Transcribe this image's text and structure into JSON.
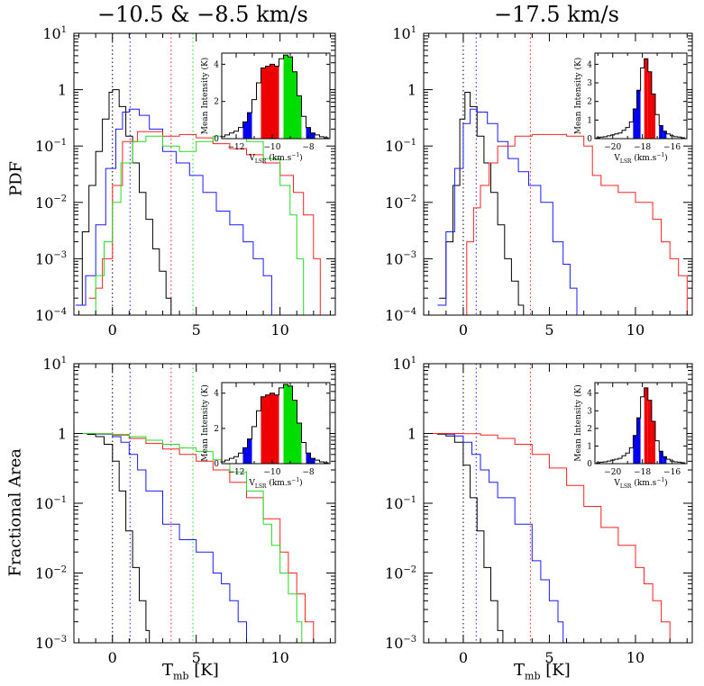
{
  "figure": {
    "column_titles": [
      "−10.5 & −8.5 km/s",
      "−17.5 km/s"
    ],
    "row_ylabels": [
      "PDF",
      "Fractional Area"
    ],
    "xlabel_main": "T",
    "xlabel_sub": "mb",
    "xlabel_unit": " [K]"
  },
  "colors": {
    "black": "#000000",
    "blue": "#1a1aff",
    "red": "#ff2020",
    "green": "#22dd22",
    "inset_blue": "#0000ee",
    "inset_red": "#ee0000",
    "inset_green": "#00dd00"
  },
  "chart_data": [
    {
      "type": "line",
      "step": true,
      "id": "pdf_left",
      "title": "−10.5 & −8.5 km/s",
      "ylabel": "PDF",
      "xlabel": "",
      "xlim": [
        -2.3,
        13.3
      ],
      "ylim": [
        0.0001,
        10
      ],
      "yscale": "log",
      "xticks": [
        0,
        5,
        10
      ],
      "yticklabels": [
        "10^-4",
        "10^-3",
        "10^-2",
        "10^-1",
        "1",
        "10^1"
      ],
      "vlines": [
        {
          "x": 0.0,
          "color": "black"
        },
        {
          "x": 1.05,
          "color": "blue"
        },
        {
          "x": 3.5,
          "color": "red"
        },
        {
          "x": 4.8,
          "color": "green"
        }
      ],
      "series": [
        {
          "color": "black",
          "x": [
            -2.2,
            -1.8,
            -1.4,
            -1.0,
            -0.6,
            -0.2,
            0.0,
            0.4,
            0.8,
            1.2,
            1.6,
            2.0,
            2.4,
            2.8,
            3.2,
            3.5
          ],
          "y": [
            0.00015,
            0.003,
            0.02,
            0.08,
            0.3,
            0.9,
            1.0,
            0.5,
            0.15,
            0.05,
            0.015,
            0.005,
            0.0015,
            0.0006,
            0.0002,
            0.0001
          ]
        },
        {
          "color": "blue",
          "x": [
            -2.2,
            -1.6,
            -1.0,
            -0.4,
            0.2,
            0.6,
            1.0,
            1.6,
            2.2,
            3.0,
            3.8,
            4.6,
            5.4,
            6.2,
            7.0,
            7.8,
            8.4,
            9.0,
            9.5
          ],
          "y": [
            0.00015,
            0.0005,
            0.004,
            0.04,
            0.2,
            0.4,
            0.45,
            0.35,
            0.2,
            0.08,
            0.05,
            0.03,
            0.015,
            0.007,
            0.004,
            0.002,
            0.001,
            0.0005,
            0.0001
          ]
        },
        {
          "color": "red",
          "x": [
            -1.4,
            -1.0,
            -0.6,
            0.0,
            0.6,
            1.5,
            3.0,
            4.0,
            5.0,
            6.0,
            7.0,
            8.0,
            9.0,
            10.0,
            10.8,
            11.4,
            12.0,
            12.4
          ],
          "y": [
            0.0002,
            0.0003,
            0.001,
            0.02,
            0.12,
            0.18,
            0.15,
            0.16,
            0.14,
            0.11,
            0.09,
            0.07,
            0.05,
            0.03,
            0.015,
            0.006,
            0.001,
            0.0002
          ]
        },
        {
          "color": "green",
          "x": [
            -1.7,
            -1.0,
            -0.5,
            0.0,
            0.5,
            1.2,
            2.0,
            3.0,
            4.0,
            5.0,
            6.0,
            7.0,
            8.0,
            9.0,
            10.0,
            10.6,
            11.0,
            11.4
          ],
          "y": [
            0.0001,
            0.0005,
            0.002,
            0.01,
            0.05,
            0.12,
            0.15,
            0.1,
            0.08,
            0.12,
            0.15,
            0.16,
            0.12,
            0.06,
            0.02,
            0.006,
            0.001,
            0.0001
          ]
        }
      ],
      "inset": {
        "type": "bar",
        "xlabel": "V_LSR (km.s^-1)",
        "ylabel": "Mean Intensity (K)",
        "xlim": [
          -12.8,
          -6.8
        ],
        "ylim": [
          0,
          4.6
        ],
        "xticks": [
          -12,
          -10,
          -8
        ],
        "yticks": [
          0,
          2,
          4
        ],
        "bin_width": 0.25,
        "x": [
          -12.75,
          -12.5,
          -12.25,
          -12.0,
          -11.75,
          -11.5,
          -11.25,
          -11.0,
          -10.75,
          -10.5,
          -10.25,
          -10.0,
          -9.75,
          -9.5,
          -9.25,
          -9.0,
          -8.75,
          -8.5,
          -8.25,
          -8.0,
          -7.75,
          -7.5,
          -7.25,
          -7.0
        ],
        "values": [
          0.1,
          0.2,
          0.3,
          0.4,
          0.6,
          0.9,
          1.4,
          2.1,
          3.0,
          3.8,
          3.9,
          4.0,
          3.9,
          4.3,
          4.5,
          4.4,
          3.6,
          2.3,
          1.2,
          0.6,
          0.3,
          0.2,
          0.1,
          0.05
        ],
        "highlight": [
          {
            "from": -11.5,
            "to": -11.25,
            "color": "inset_blue"
          },
          {
            "from": -10.5,
            "to": -9.75,
            "color": "inset_red"
          },
          {
            "from": -9.25,
            "to": -8.5,
            "color": "inset_green"
          },
          {
            "from": -8.0,
            "to": -7.75,
            "color": "inset_blue"
          }
        ]
      }
    },
    {
      "type": "line",
      "step": true,
      "id": "pdf_right",
      "title": "−17.5 km/s",
      "ylabel": "",
      "xlabel": "",
      "xlim": [
        -2.3,
        13.3
      ],
      "ylim": [
        0.0001,
        10
      ],
      "yscale": "log",
      "xticks": [
        0,
        5,
        10
      ],
      "yticklabels": [
        "10^-4",
        "10^-3",
        "10^-2",
        "10^-1",
        "1",
        "10^1"
      ],
      "vlines": [
        {
          "x": 0.0,
          "color": "black"
        },
        {
          "x": 0.75,
          "color": "blue"
        },
        {
          "x": 3.9,
          "color": "red"
        }
      ],
      "series": [
        {
          "color": "black",
          "x": [
            -1.4,
            -1.0,
            -0.6,
            -0.2,
            0.1,
            0.4,
            0.8,
            1.2,
            1.6,
            2.0,
            2.4,
            2.8,
            3.2,
            3.5
          ],
          "y": [
            0.0002,
            0.002,
            0.02,
            0.3,
            0.9,
            0.5,
            0.15,
            0.05,
            0.015,
            0.004,
            0.001,
            0.0004,
            0.00015,
            0.0001
          ]
        },
        {
          "color": "blue",
          "x": [
            -1.5,
            -1.0,
            -0.5,
            0.0,
            0.4,
            0.8,
            1.4,
            2.0,
            2.6,
            3.2,
            3.8,
            4.5,
            5.2,
            5.8,
            6.2,
            6.6
          ],
          "y": [
            0.00015,
            0.003,
            0.04,
            0.25,
            0.45,
            0.4,
            0.25,
            0.12,
            0.06,
            0.035,
            0.02,
            0.01,
            0.002,
            0.0008,
            0.0003,
            0.0001
          ]
        },
        {
          "color": "red",
          "x": [
            -0.1,
            0.2,
            0.6,
            1.0,
            1.5,
            2.0,
            3.0,
            4.0,
            5.0,
            6.0,
            7.0,
            7.5,
            8.0,
            9.0,
            10.0,
            11.0,
            11.5,
            12.0,
            12.5,
            13.0
          ],
          "y": [
            0.0001,
            0.002,
            0.008,
            0.02,
            0.05,
            0.1,
            0.15,
            0.16,
            0.16,
            0.15,
            0.1,
            0.03,
            0.02,
            0.015,
            0.01,
            0.005,
            0.002,
            0.001,
            0.0005,
            0.0001
          ]
        }
      ],
      "inset": {
        "type": "bar",
        "xlabel": "V_LSR (km.s^-1)",
        "ylabel": "Mean Intensity (K)",
        "xlim": [
          -21.2,
          -15.0
        ],
        "ylim": [
          0,
          4.6
        ],
        "xticks": [
          -20,
          -18,
          -16
        ],
        "yticks": [
          0,
          1,
          2,
          3,
          4
        ],
        "bin_width": 0.25,
        "x": [
          -21.0,
          -20.75,
          -20.5,
          -20.25,
          -20.0,
          -19.75,
          -19.5,
          -19.25,
          -19.0,
          -18.75,
          -18.5,
          -18.25,
          -18.0,
          -17.75,
          -17.5,
          -17.25,
          -17.0,
          -16.75,
          -16.5,
          -16.25,
          -16.0,
          -15.75,
          -15.5,
          -15.25
        ],
        "values": [
          0.05,
          0.08,
          0.1,
          0.15,
          0.2,
          0.25,
          0.3,
          0.45,
          0.6,
          0.9,
          1.6,
          2.6,
          3.8,
          4.3,
          3.6,
          2.4,
          1.3,
          0.7,
          0.4,
          0.25,
          0.15,
          0.1,
          0.08,
          0.05
        ],
        "highlight": [
          {
            "from": -18.5,
            "to": -18.25,
            "color": "inset_blue"
          },
          {
            "from": -17.75,
            "to": -17.25,
            "color": "inset_red"
          },
          {
            "from": -16.75,
            "to": -16.5,
            "color": "inset_blue"
          }
        ]
      }
    },
    {
      "type": "line",
      "step": true,
      "id": "frac_left",
      "title": "",
      "ylabel": "Fractional Area",
      "xlabel": "T_mb [K]",
      "xlim": [
        -2.3,
        13.3
      ],
      "ylim": [
        0.001,
        10
      ],
      "yscale": "log",
      "xticks": [
        0,
        5,
        10
      ],
      "yticklabels": [
        "10^-3",
        "10^-2",
        "10^-1",
        "1",
        "10^1"
      ],
      "vlines": [
        {
          "x": 0.0,
          "color": "black"
        },
        {
          "x": 1.05,
          "color": "blue"
        },
        {
          "x": 3.5,
          "color": "red"
        },
        {
          "x": 4.8,
          "color": "green"
        }
      ],
      "series": [
        {
          "color": "black",
          "x": [
            -2.2,
            -1.5,
            -1.0,
            -0.5,
            0.0,
            0.4,
            0.8,
            1.2,
            1.6,
            2.0,
            2.2
          ],
          "y": [
            1.0,
            0.97,
            0.9,
            0.7,
            0.4,
            0.15,
            0.04,
            0.012,
            0.004,
            0.0015,
            0.001
          ]
        },
        {
          "color": "blue",
          "x": [
            -2.2,
            -1.0,
            0.0,
            0.5,
            1.0,
            1.5,
            2.0,
            3.0,
            4.0,
            5.0,
            6.0,
            6.5,
            7.0,
            7.5,
            8.0
          ],
          "y": [
            1.0,
            0.98,
            0.9,
            0.75,
            0.5,
            0.3,
            0.15,
            0.05,
            0.03,
            0.02,
            0.01,
            0.007,
            0.004,
            0.002,
            0.001
          ]
        },
        {
          "color": "red",
          "x": [
            -2.2,
            -1.0,
            0.0,
            1.0,
            2.0,
            3.0,
            4.0,
            5.0,
            6.0,
            7.0,
            8.0,
            9.0,
            10.0,
            10.5,
            11.0,
            11.5,
            12.0
          ],
          "y": [
            1.0,
            0.99,
            0.95,
            0.85,
            0.72,
            0.6,
            0.5,
            0.4,
            0.3,
            0.2,
            0.12,
            0.06,
            0.02,
            0.01,
            0.005,
            0.002,
            0.001
          ]
        },
        {
          "color": "green",
          "x": [
            -2.2,
            -1.0,
            0.0,
            1.0,
            2.0,
            3.0,
            4.0,
            5.0,
            6.0,
            7.0,
            8.0,
            9.0,
            9.5,
            10.0,
            10.5,
            11.0,
            11.3
          ],
          "y": [
            1.0,
            0.99,
            0.97,
            0.9,
            0.8,
            0.7,
            0.62,
            0.55,
            0.42,
            0.28,
            0.15,
            0.05,
            0.025,
            0.01,
            0.005,
            0.002,
            0.001
          ]
        }
      ],
      "inset": {
        "type": "bar",
        "xlabel": "V_LSR (km.s^-1)",
        "ylabel": "Mean Intensity (K)",
        "xlim": [
          -12.8,
          -6.8
        ],
        "ylim": [
          0,
          4.6
        ],
        "xticks": [
          -12,
          -10,
          -8
        ],
        "yticks": [
          0,
          2,
          4
        ],
        "bin_width": 0.25,
        "x": [
          -12.75,
          -12.5,
          -12.25,
          -12.0,
          -11.75,
          -11.5,
          -11.25,
          -11.0,
          -10.75,
          -10.5,
          -10.25,
          -10.0,
          -9.75,
          -9.5,
          -9.25,
          -9.0,
          -8.75,
          -8.5,
          -8.25,
          -8.0,
          -7.75,
          -7.5,
          -7.25,
          -7.0
        ],
        "values": [
          0.1,
          0.2,
          0.3,
          0.4,
          0.6,
          0.9,
          1.4,
          2.1,
          3.0,
          3.8,
          3.9,
          4.0,
          3.9,
          4.3,
          4.5,
          4.4,
          3.6,
          2.3,
          1.2,
          0.6,
          0.3,
          0.2,
          0.1,
          0.05
        ],
        "highlight": [
          {
            "from": -11.5,
            "to": -11.25,
            "color": "inset_blue"
          },
          {
            "from": -10.5,
            "to": -9.75,
            "color": "inset_red"
          },
          {
            "from": -9.25,
            "to": -8.5,
            "color": "inset_green"
          },
          {
            "from": -8.0,
            "to": -7.75,
            "color": "inset_blue"
          }
        ]
      }
    },
    {
      "type": "line",
      "step": true,
      "id": "frac_right",
      "title": "",
      "ylabel": "",
      "xlabel": "T_mb [K]",
      "xlim": [
        -2.3,
        13.3
      ],
      "ylim": [
        0.001,
        10
      ],
      "yscale": "log",
      "xticks": [
        0,
        5,
        10
      ],
      "yticklabels": [
        "10^-3",
        "10^-2",
        "10^-1",
        "1",
        "10^1"
      ],
      "vlines": [
        {
          "x": 0.0,
          "color": "black"
        },
        {
          "x": 0.75,
          "color": "blue"
        },
        {
          "x": 3.9,
          "color": "red"
        }
      ],
      "series": [
        {
          "color": "black",
          "x": [
            -2.2,
            -1.5,
            -1.0,
            -0.5,
            0.0,
            0.4,
            0.8,
            1.2,
            1.6,
            2.0,
            2.3
          ],
          "y": [
            1.0,
            0.98,
            0.92,
            0.75,
            0.35,
            0.12,
            0.04,
            0.012,
            0.004,
            0.0015,
            0.001
          ]
        },
        {
          "color": "blue",
          "x": [
            -2.2,
            -1.0,
            -0.5,
            0.0,
            0.5,
            1.0,
            1.5,
            2.0,
            3.0,
            4.0,
            4.5,
            5.0,
            5.5,
            5.8
          ],
          "y": [
            1.0,
            0.98,
            0.92,
            0.75,
            0.5,
            0.3,
            0.2,
            0.12,
            0.05,
            0.015,
            0.008,
            0.004,
            0.002,
            0.001
          ]
        },
        {
          "color": "red",
          "x": [
            -2.2,
            -1.0,
            0.0,
            1.0,
            2.0,
            3.0,
            4.0,
            5.0,
            6.0,
            7.0,
            8.0,
            9.0,
            10.0,
            10.5,
            11.0,
            11.5,
            12.0
          ],
          "y": [
            1.0,
            1.0,
            0.99,
            0.95,
            0.85,
            0.7,
            0.5,
            0.32,
            0.18,
            0.09,
            0.045,
            0.025,
            0.012,
            0.007,
            0.004,
            0.002,
            0.001
          ]
        }
      ],
      "inset": {
        "type": "bar",
        "xlabel": "V_LSR (km.s^-1)",
        "ylabel": "Mean Intensity (K)",
        "xlim": [
          -21.2,
          -15.0
        ],
        "ylim": [
          0,
          4.6
        ],
        "xticks": [
          -20,
          -18,
          -16
        ],
        "yticks": [
          0,
          1,
          2,
          3,
          4
        ],
        "bin_width": 0.25,
        "x": [
          -21.0,
          -20.75,
          -20.5,
          -20.25,
          -20.0,
          -19.75,
          -19.5,
          -19.25,
          -19.0,
          -18.75,
          -18.5,
          -18.25,
          -18.0,
          -17.75,
          -17.5,
          -17.25,
          -17.0,
          -16.75,
          -16.5,
          -16.25,
          -16.0,
          -15.75,
          -15.5,
          -15.25
        ],
        "values": [
          0.05,
          0.08,
          0.1,
          0.15,
          0.2,
          0.25,
          0.3,
          0.45,
          0.6,
          0.9,
          1.6,
          2.6,
          3.8,
          4.3,
          3.6,
          2.4,
          1.3,
          0.7,
          0.4,
          0.25,
          0.15,
          0.1,
          0.08,
          0.05
        ],
        "highlight": [
          {
            "from": -18.5,
            "to": -18.25,
            "color": "inset_blue"
          },
          {
            "from": -17.75,
            "to": -17.25,
            "color": "inset_red"
          },
          {
            "from": -16.75,
            "to": -16.5,
            "color": "inset_blue"
          }
        ]
      }
    }
  ]
}
